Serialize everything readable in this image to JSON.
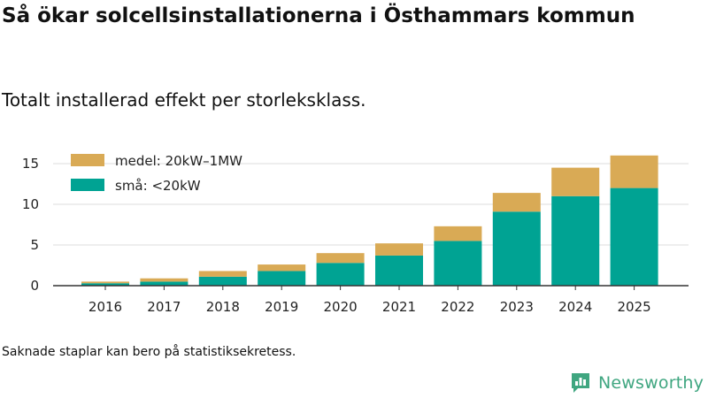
{
  "title": "Så ökar solcellsinstallationerna i Östhammars kommun",
  "subtitle": "Totalt installerad effekt per storleksklass.",
  "note": "Saknade staplar kan bero på statistiksekretess.",
  "brand": {
    "name": "Newsworthy",
    "icon": "bar-chart-speech-icon"
  },
  "colors": {
    "medium": "#d9aa55",
    "small": "#00a393",
    "grid": "#dcdcdc",
    "axis": "#333333",
    "brand": "#3fa680"
  },
  "chart_data": {
    "type": "bar",
    "stacked": true,
    "title": "Så ökar solcellsinstallationerna i Östhammars kommun",
    "subtitle": "Totalt installerad effekt per storleksklass.",
    "xlabel": "",
    "ylabel": "",
    "categories": [
      "2016",
      "2017",
      "2018",
      "2019",
      "2020",
      "2021",
      "2022",
      "2023",
      "2024",
      "2025"
    ],
    "series": [
      {
        "name": "små: <20kW",
        "color": "#00a393",
        "values": [
          0.3,
          0.5,
          1.1,
          1.8,
          2.8,
          3.7,
          5.5,
          9.1,
          11.0,
          12.0
        ]
      },
      {
        "name": "medel: 20kW–1MW",
        "color": "#d9aa55",
        "values": [
          0.2,
          0.4,
          0.7,
          0.8,
          1.2,
          1.5,
          1.8,
          2.3,
          3.5,
          4.0
        ]
      }
    ],
    "yticks": [
      0,
      5,
      10,
      15
    ],
    "ylim": [
      0,
      18
    ],
    "grid": true,
    "legend": "top-left"
  }
}
